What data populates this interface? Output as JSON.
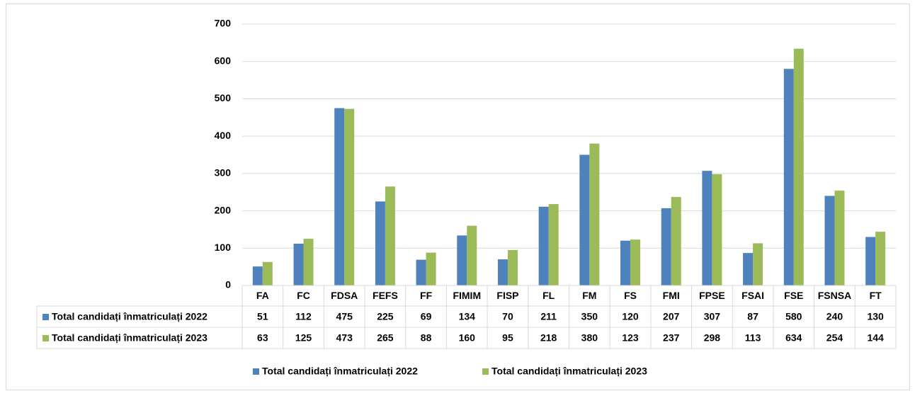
{
  "chart_data": {
    "type": "bar",
    "categories": [
      "FA",
      "FC",
      "FDSA",
      "FEFS",
      "FF",
      "FIMIM",
      "FISP",
      "FL",
      "FM",
      "FS",
      "FMI",
      "FPSE",
      "FSAI",
      "FSE",
      "FSNSA",
      "FT"
    ],
    "series": [
      {
        "name": "Total candidați înmatriculați 2022",
        "color": "#4f81bd",
        "values": [
          51,
          112,
          475,
          225,
          69,
          134,
          70,
          211,
          350,
          120,
          207,
          307,
          87,
          580,
          240,
          130
        ]
      },
      {
        "name": "Total candidați înmatriculați 2023",
        "color": "#9bbb59",
        "values": [
          63,
          125,
          473,
          265,
          88,
          160,
          95,
          218,
          380,
          123,
          237,
          298,
          113,
          634,
          254,
          144
        ]
      }
    ],
    "ylim": [
      0,
      700
    ],
    "yticks": [
      0,
      100,
      200,
      300,
      400,
      500,
      600,
      700
    ],
    "grid": true,
    "data_table": true,
    "legend": "bottom"
  }
}
